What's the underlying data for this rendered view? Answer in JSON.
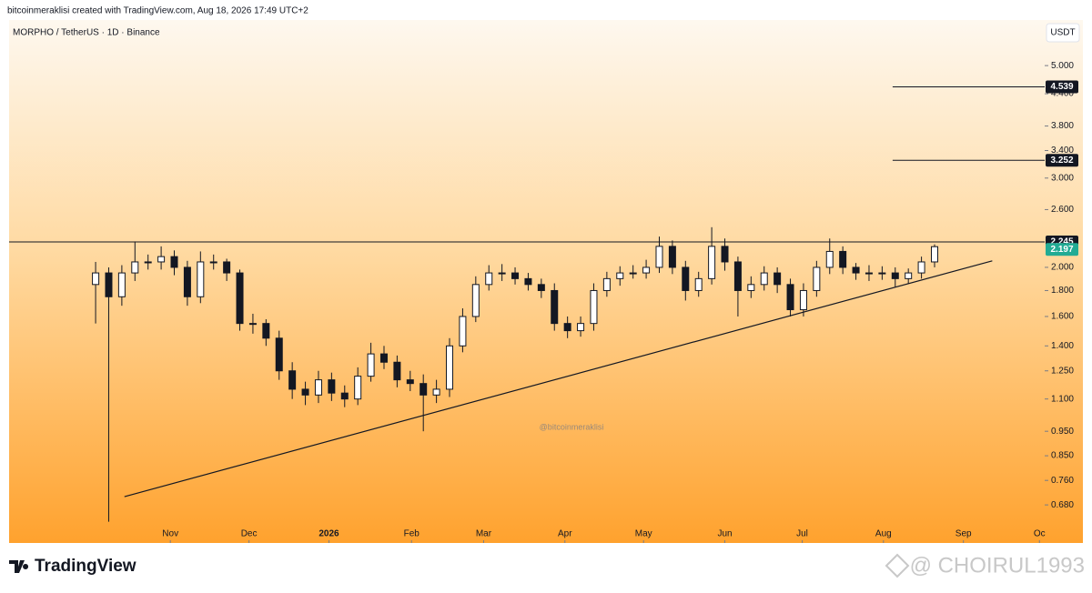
{
  "header": {
    "credit": "bitcoinmeraklisi created with TradingView.com, Aug 18, 2026 17:49 UTC+2"
  },
  "footer": {
    "logo": "TradingView",
    "watermark": "@ CHOIRUL1993"
  },
  "chart_data": {
    "type": "candlestick",
    "title": "MORPHO / TetherUS · 1D · Binance",
    "currency": "USDT",
    "annotation": "@bitcoinmeraklisi",
    "log_scale": true,
    "up_color": "#ffffff",
    "down_color": "#131722",
    "candles": {
      "open": [
        1.85,
        1.95,
        1.75,
        1.95,
        2.05,
        2.05,
        2.1,
        2.0,
        1.75,
        2.05,
        2.05,
        1.95,
        1.55,
        1.55,
        1.45,
        1.25,
        1.15,
        1.12,
        1.2,
        1.13,
        1.1,
        1.22,
        1.35,
        1.3,
        1.2,
        1.18,
        1.12,
        1.15,
        1.4,
        1.6,
        1.85,
        1.95,
        1.95,
        1.9,
        1.85,
        1.8,
        1.55,
        1.5,
        1.55,
        1.8,
        1.9,
        1.95,
        1.95,
        2.0,
        2.2,
        2.0,
        1.8,
        1.9,
        2.2,
        2.05,
        1.8,
        1.85,
        1.95,
        1.85,
        1.65,
        1.8,
        2.0,
        2.15,
        2.0,
        1.95,
        1.95,
        1.95,
        1.9,
        1.95,
        2.05
      ],
      "high": [
        2.05,
        2.0,
        2.02,
        2.25,
        2.12,
        2.2,
        2.16,
        2.06,
        2.15,
        2.12,
        2.08,
        1.98,
        1.62,
        1.58,
        1.5,
        1.3,
        1.19,
        1.25,
        1.24,
        1.17,
        1.27,
        1.42,
        1.4,
        1.34,
        1.25,
        1.23,
        1.2,
        1.45,
        1.66,
        1.92,
        2.02,
        2.03,
        2.0,
        1.95,
        1.9,
        1.86,
        1.6,
        1.6,
        1.86,
        1.96,
        2.01,
        2.02,
        2.07,
        2.3,
        2.26,
        2.06,
        1.96,
        2.4,
        2.28,
        2.1,
        1.92,
        2.01,
        2.0,
        1.9,
        1.86,
        2.06,
        2.28,
        2.2,
        2.04,
        2.02,
        2.01,
        2.0,
        1.99,
        2.1,
        2.22
      ],
      "low": [
        1.55,
        0.63,
        1.68,
        1.88,
        1.98,
        1.98,
        1.93,
        1.68,
        1.7,
        1.98,
        1.88,
        1.5,
        1.48,
        1.4,
        1.2,
        1.1,
        1.07,
        1.08,
        1.09,
        1.06,
        1.07,
        1.19,
        1.26,
        1.16,
        1.14,
        0.95,
        1.08,
        1.11,
        1.36,
        1.56,
        1.8,
        1.88,
        1.85,
        1.8,
        1.74,
        1.5,
        1.45,
        1.46,
        1.5,
        1.75,
        1.84,
        1.9,
        1.9,
        1.95,
        1.94,
        1.72,
        1.75,
        1.85,
        1.97,
        1.6,
        1.74,
        1.8,
        1.78,
        1.6,
        1.6,
        1.75,
        1.94,
        1.94,
        1.89,
        1.88,
        1.89,
        1.83,
        1.86,
        1.9,
        2.0
      ],
      "close": [
        1.95,
        1.75,
        1.95,
        2.05,
        2.05,
        2.1,
        2.0,
        1.75,
        2.05,
        2.05,
        1.95,
        1.55,
        1.55,
        1.45,
        1.25,
        1.15,
        1.12,
        1.2,
        1.13,
        1.1,
        1.22,
        1.35,
        1.3,
        1.2,
        1.18,
        1.12,
        1.15,
        1.4,
        1.6,
        1.85,
        1.95,
        1.95,
        1.9,
        1.85,
        1.8,
        1.55,
        1.5,
        1.55,
        1.8,
        1.9,
        1.95,
        1.95,
        2.0,
        2.2,
        2.0,
        1.8,
        1.9,
        2.2,
        2.05,
        1.8,
        1.85,
        1.95,
        1.85,
        1.65,
        1.8,
        2.0,
        2.15,
        2.0,
        1.95,
        1.95,
        1.95,
        1.9,
        1.95,
        2.05,
        2.197
      ]
    },
    "levels": [
      {
        "value": 4.539,
        "x": 60.8
      },
      {
        "value": 3.252,
        "x": 60.8
      },
      {
        "value": 2.245,
        "x": -6.6
      }
    ],
    "trendline": {
      "x": [
        2.2,
        68.4
      ],
      "values": [
        0.706,
        2.06
      ]
    },
    "xlim": [
      -6.6,
      72.4
    ],
    "xticks": [
      {
        "value": 5.7,
        "label": "Nov"
      },
      {
        "value": 11.7,
        "label": "Dec"
      },
      {
        "value": 17.8,
        "label": "2026"
      },
      {
        "value": 24.1,
        "label": "Feb"
      },
      {
        "value": 29.6,
        "label": "Mar"
      },
      {
        "value": 35.8,
        "label": "Apr"
      },
      {
        "value": 41.8,
        "label": "May"
      },
      {
        "value": 48.0,
        "label": "Jun"
      },
      {
        "value": 53.9,
        "label": "Jul"
      },
      {
        "value": 60.1,
        "label": "Aug"
      },
      {
        "value": 66.2,
        "label": "Sep"
      },
      {
        "value": 72.0,
        "label": "Oc"
      }
    ],
    "ylim": [
      0.572,
      6.15
    ],
    "yticks": [
      {
        "value": 0.68,
        "label": "0.680"
      },
      {
        "value": 0.76,
        "label": "0.760"
      },
      {
        "value": 0.85,
        "label": "0.850"
      },
      {
        "value": 0.95,
        "label": "0.950"
      },
      {
        "value": 1.1,
        "label": "1.100"
      },
      {
        "value": 1.25,
        "label": "1.250"
      },
      {
        "value": 1.4,
        "label": "1.400"
      },
      {
        "value": 1.6,
        "label": "1.600"
      },
      {
        "value": 1.8,
        "label": "1.800"
      },
      {
        "value": 2,
        "label": "2.000"
      },
      {
        "value": 2.6,
        "label": "2.600"
      },
      {
        "value": 3,
        "label": "3.000"
      },
      {
        "value": 3.4,
        "label": "3.400"
      },
      {
        "value": 3.8,
        "label": "3.800"
      },
      {
        "value": 4.4,
        "label": "4.400"
      },
      {
        "value": 5,
        "label": "5.000"
      }
    ],
    "grid": false
  }
}
